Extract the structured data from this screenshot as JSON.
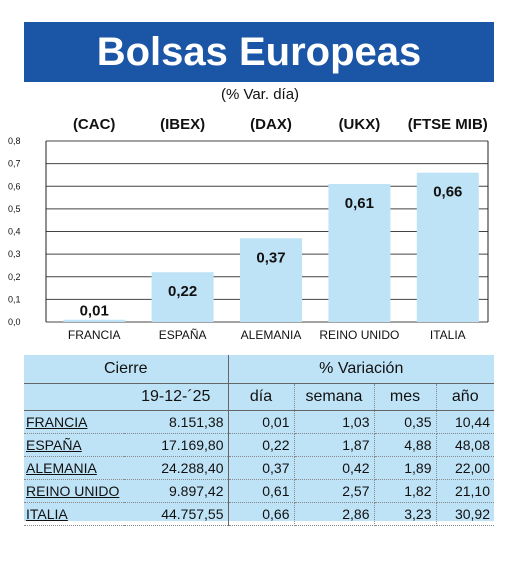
{
  "title": "Bolsas Europeas",
  "subtitle": "(% Var. día)",
  "chart_data": {
    "type": "bar",
    "categories": [
      "FRANCIA",
      "ESPAÑA",
      "ALEMANIA",
      "REINO UNIDO",
      "ITALIA"
    ],
    "index_labels": [
      "(CAC)",
      "(IBEX)",
      "(DAX)",
      "(UKX)",
      "(FTSE MIB)"
    ],
    "values": [
      0.01,
      0.22,
      0.37,
      0.61,
      0.66
    ],
    "value_labels": [
      "0,01",
      "0,22",
      "0,37",
      "0,61",
      "0,66"
    ],
    "ylim": [
      0,
      0.8
    ],
    "y_ticks": [
      "0,0",
      "0,1",
      "0,2",
      "0,3",
      "0,4",
      "0,5",
      "0,6",
      "0,7",
      "0,8"
    ],
    "grid": true,
    "bar_color": "#bfe3f6"
  },
  "table": {
    "header_cierre": "Cierre",
    "header_variacion": "% Variación",
    "date": "19-12-´25",
    "col_dia": "día",
    "col_semana": "semana",
    "col_mes": "mes",
    "col_ano": "año",
    "rows": [
      {
        "country": "FRANCIA",
        "cierre": "8.151,38",
        "dia": "0,01",
        "semana": "1,03",
        "mes": "0,35",
        "ano": "10,44"
      },
      {
        "country": "ESPAÑA",
        "cierre": "17.169,80",
        "dia": "0,22",
        "semana": "1,87",
        "mes": "4,88",
        "ano": "48,08"
      },
      {
        "country": "ALEMANIA",
        "cierre": "24.288,40",
        "dia": "0,37",
        "semana": "0,42",
        "mes": "1,89",
        "ano": "22,00"
      },
      {
        "country": "REINO UNIDO",
        "cierre": "9.897,42",
        "dia": "0,61",
        "semana": "2,57",
        "mes": "1,82",
        "ano": "21,10"
      },
      {
        "country": "ITALIA",
        "cierre": "44.757,55",
        "dia": "0,66",
        "semana": "2,86",
        "mes": "3,23",
        "ano": "30,92"
      }
    ]
  },
  "colors": {
    "title_bg": "#1a55a6",
    "table_bg": "#bfe3f6"
  }
}
